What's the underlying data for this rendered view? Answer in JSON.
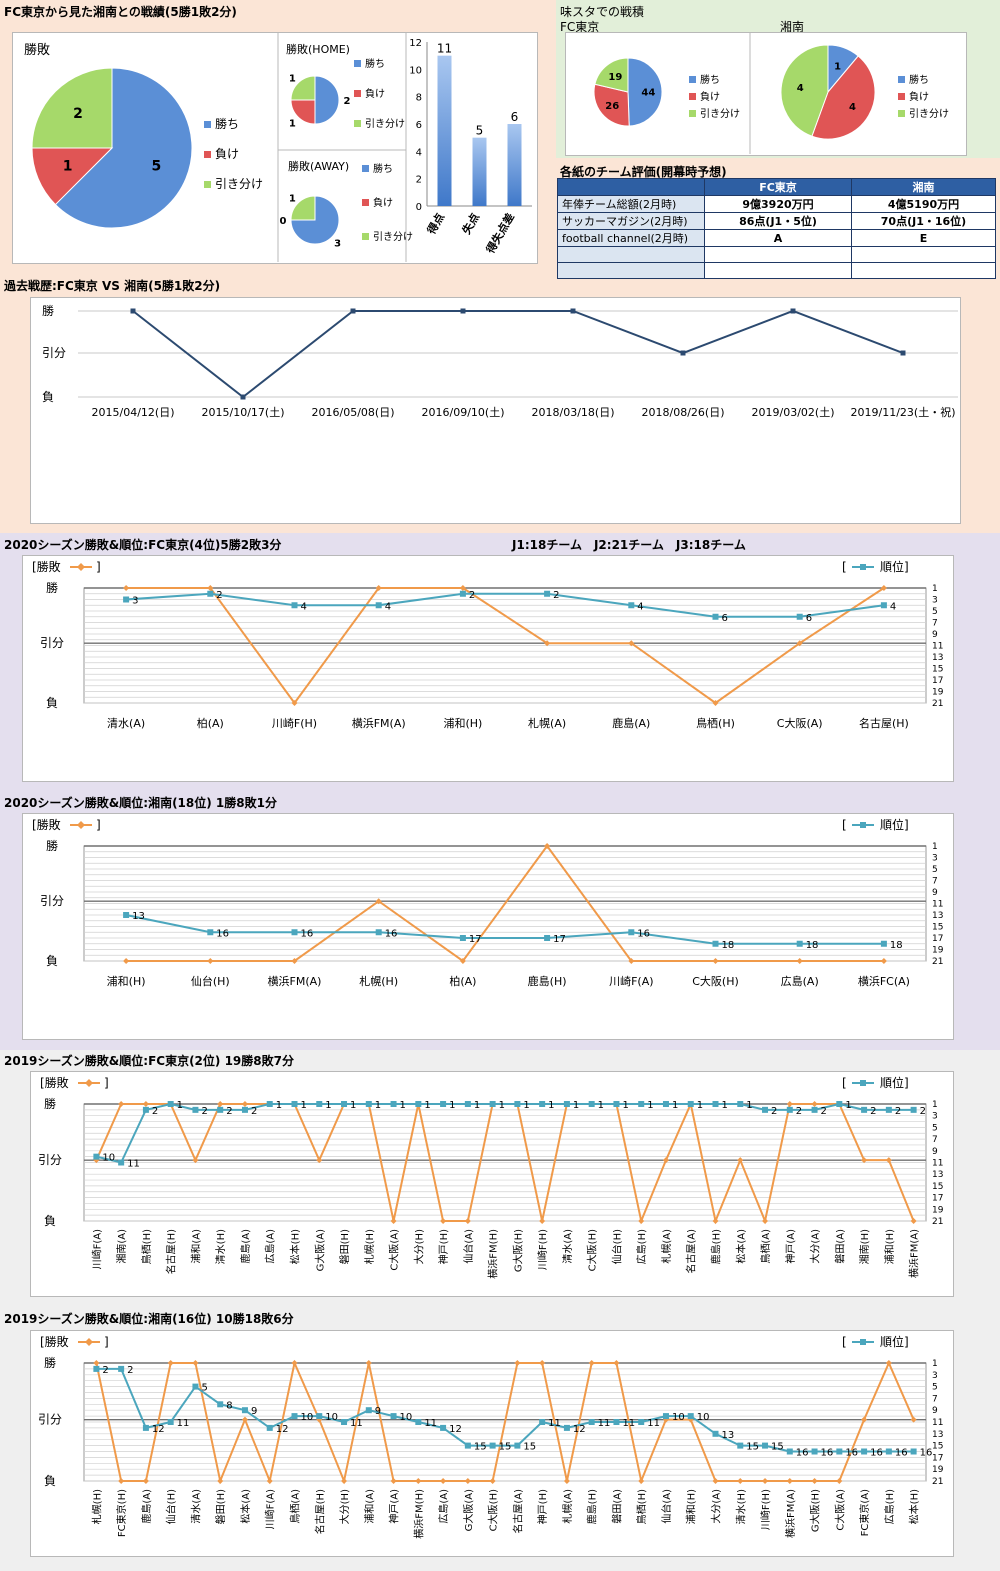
{
  "sec1": {
    "title": "FC東京から見た湘南との戦績(5勝1敗2分)",
    "pie_main": {
      "title": "勝敗",
      "values": [
        5,
        1,
        2
      ],
      "labels": [
        "勝ち",
        "負け",
        "引き分け"
      ]
    },
    "pie_home": {
      "title": "勝敗(HOME)",
      "values": [
        2,
        1,
        1
      ],
      "labels": [
        "勝ち",
        "負け",
        "引き分け"
      ]
    },
    "pie_away": {
      "title": "勝敗(AWAY)",
      "values": [
        3,
        0,
        1
      ],
      "labels": [
        "勝ち",
        "負け",
        "引き分け"
      ]
    },
    "bar": {
      "categories": [
        "得点",
        "失点",
        "得失点差"
      ],
      "values": [
        11,
        5,
        6
      ],
      "ticks": [
        "0",
        "2",
        "4",
        "6",
        "8",
        "10",
        "12"
      ]
    }
  },
  "ajista": {
    "title": "味スタでの戦積",
    "fc_label": "FC東京",
    "shonan_label": "湘南",
    "pie_fc": {
      "values": [
        44,
        26,
        19
      ],
      "labels": [
        "勝ち",
        "負け",
        "引き分け"
      ]
    },
    "pie_shonan": {
      "values": [
        1,
        4,
        4
      ],
      "labels": [
        "勝ち",
        "負け",
        "引き分け"
      ]
    }
  },
  "eval": {
    "title": "各紙のチーム評価(開幕時予想)",
    "headers": [
      "",
      "FC東京",
      "湘南"
    ],
    "rows": [
      [
        "年俸チーム総額(2月時)",
        "9億3920万円",
        "4億5190万円"
      ],
      [
        "サッカーマガジン(2月時)",
        "86点(J1・5位)",
        "70点(J1・16位)"
      ],
      [
        "football channel(2月時)",
        "A",
        "E"
      ],
      [
        "",
        "",
        ""
      ],
      [
        "",
        "",
        ""
      ]
    ]
  },
  "history": {
    "title": "過去戦歴:FC東京 VS 湘南(5勝1敗2分)",
    "ylabels": [
      "勝",
      "引分",
      "負"
    ],
    "dates": [
      "2015/04/12(日)",
      "2015/10/17(土)",
      "2016/05/08(日)",
      "2016/09/10(土)",
      "2018/03/18(日)",
      "2018/08/26(日)",
      "2019/03/02(土)",
      "2019/11/23(土・祝)"
    ],
    "results": [
      1,
      -1,
      1,
      1,
      1,
      0,
      1,
      0
    ]
  },
  "legend": {
    "result": "[勝敗",
    "rank": "順位]"
  },
  "common_ylabels": [
    "勝",
    "引分",
    "負"
  ],
  "rank_ticks": [
    "1",
    "3",
    "5",
    "7",
    "9",
    "11",
    "13",
    "15",
    "17",
    "19",
    "21"
  ],
  "league_info": "J1:18チーム　J2:21チーム　J3:18チーム",
  "s2020_fc": {
    "title": "2020シーズン勝敗&順位:FC東京(4位)5勝2敗3分",
    "opponents": [
      "清水(A)",
      "柏(A)",
      "川崎F(H)",
      "横浜FM(A)",
      "浦和(H)",
      "札幌(A)",
      "鹿島(A)",
      "鳥栖(H)",
      "C大阪(A)",
      "名古屋(H)"
    ],
    "results": [
      1,
      1,
      -1,
      1,
      1,
      0,
      0,
      -1,
      0,
      1
    ],
    "ranks": [
      3,
      2,
      4,
      4,
      2,
      2,
      4,
      6,
      6,
      4
    ]
  },
  "s2020_sh": {
    "title": "2020シーズン勝敗&順位:湘南(18位) 1勝8敗1分",
    "opponents": [
      "浦和(H)",
      "仙台(H)",
      "横浜FM(A)",
      "札幌(H)",
      "柏(A)",
      "鹿島(H)",
      "川崎F(A)",
      "C大阪(H)",
      "広島(A)",
      "横浜FC(A)"
    ],
    "results": [
      -1,
      -1,
      -1,
      0,
      -1,
      1,
      -1,
      -1,
      -1,
      -1
    ],
    "ranks": [
      13,
      16,
      16,
      16,
      17,
      17,
      16,
      18,
      18,
      18
    ]
  },
  "s2019_fc": {
    "title": "2019シーズン勝敗&順位:FC東京(2位) 19勝8敗7分",
    "opponents": [
      "川崎F(A)",
      "湘南(A)",
      "鳥栖(H)",
      "名古屋(H)",
      "浦和(A)",
      "清水(H)",
      "鹿島(A)",
      "広島(A)",
      "松本(H)",
      "G大阪(A)",
      "磐田(H)",
      "札幌(H)",
      "C大阪(A)",
      "大分(H)",
      "神戸(H)",
      "仙台(A)",
      "横浜FM(H)",
      "G大阪(H)",
      "川崎F(H)",
      "清水(A)",
      "C大阪(H)",
      "仙台(H)",
      "広島(H)",
      "札幌(A)",
      "名古屋(A)",
      "鹿島(H)",
      "松本(A)",
      "鳥栖(A)",
      "神戸(A)",
      "大分(A)",
      "磐田(A)",
      "湘南(H)",
      "浦和(H)",
      "横浜FM(A)"
    ],
    "results": [
      0,
      1,
      1,
      1,
      0,
      1,
      1,
      1,
      1,
      0,
      1,
      1,
      -1,
      1,
      -1,
      -1,
      1,
      1,
      -1,
      1,
      1,
      1,
      -1,
      0,
      1,
      -1,
      0,
      -1,
      1,
      1,
      1,
      0,
      0,
      -1
    ],
    "ranks": [
      10,
      11,
      2,
      1,
      2,
      2,
      2,
      1,
      1,
      1,
      1,
      1,
      1,
      1,
      1,
      1,
      1,
      1,
      1,
      1,
      1,
      1,
      1,
      1,
      1,
      1,
      1,
      2,
      2,
      2,
      1,
      2,
      2,
      2
    ]
  },
  "s2019_sh": {
    "title": "2019シーズン勝敗&順位:湘南(16位) 10勝18敗6分",
    "opponents": [
      "札幌(H)",
      "FC東京(H)",
      "鹿島(A)",
      "仙台(H)",
      "清水(A)",
      "磐田(H)",
      "松本(A)",
      "川崎F(A)",
      "鳥栖(A)",
      "名古屋(H)",
      "大分(H)",
      "浦和(A)",
      "神戸(A)",
      "横浜FM(H)",
      "広島(A)",
      "G大阪(A)",
      "C大阪(H)",
      "名古屋(A)",
      "神戸(H)",
      "札幌(A)",
      "鹿島(H)",
      "磐田(A)",
      "鳥栖(H)",
      "仙台(A)",
      "浦和(H)",
      "大分(A)",
      "清水(H)",
      "川崎F(H)",
      "横浜FM(A)",
      "G大阪(H)",
      "C大阪(A)",
      "FC東京(A)",
      "広島(H)",
      "松本(H)"
    ],
    "results": [
      1,
      -1,
      -1,
      1,
      1,
      -1,
      0,
      -1,
      1,
      0,
      -1,
      1,
      -1,
      -1,
      -1,
      -1,
      -1,
      1,
      1,
      -1,
      1,
      1,
      -1,
      0,
      0,
      -1,
      -1,
      -1,
      -1,
      -1,
      -1,
      0,
      1,
      0
    ],
    "ranks": [
      2,
      2,
      12,
      11,
      5,
      8,
      9,
      12,
      10,
      10,
      11,
      9,
      10,
      11,
      12,
      15,
      15,
      15,
      11,
      12,
      11,
      11,
      11,
      10,
      10,
      13,
      15,
      15,
      16,
      16,
      16,
      16,
      16,
      16
    ]
  },
  "chart_data": [
    {
      "type": "pie",
      "title": "勝敗",
      "labels": [
        "勝ち",
        "負け",
        "引き分け"
      ],
      "values": [
        5,
        1,
        2
      ]
    },
    {
      "type": "pie",
      "title": "勝敗(HOME)",
      "labels": [
        "勝ち",
        "負け",
        "引き分け"
      ],
      "values": [
        2,
        1,
        1
      ]
    },
    {
      "type": "pie",
      "title": "勝敗(AWAY)",
      "labels": [
        "勝ち",
        "負け",
        "引き分け"
      ],
      "values": [
        3,
        0,
        1
      ]
    },
    {
      "type": "bar",
      "categories": [
        "得点",
        "失点",
        "得失点差"
      ],
      "values": [
        11,
        5,
        6
      ],
      "ylim": [
        0,
        12
      ]
    },
    {
      "type": "pie",
      "title": "FC東京",
      "labels": [
        "勝ち",
        "負け",
        "引き分け"
      ],
      "values": [
        44,
        26,
        19
      ]
    },
    {
      "type": "pie",
      "title": "湘南",
      "labels": [
        "勝ち",
        "負け",
        "引き分け"
      ],
      "values": [
        1,
        4,
        4
      ]
    },
    {
      "type": "line",
      "title": "過去戦歴:FC東京 VS 湘南(5勝1敗2分)",
      "categories": [
        "2015/04/12(日)",
        "2015/10/17(土)",
        "2016/05/08(日)",
        "2016/09/10(土)",
        "2018/03/18(日)",
        "2018/08/26(日)",
        "2019/03/02(土)",
        "2019/11/23(土・祝)"
      ],
      "values": [
        1,
        -1,
        1,
        1,
        1,
        0,
        1,
        0
      ]
    },
    {
      "type": "line",
      "title": "2020シーズン勝敗&順位:FC東京(4位)5勝2敗3分",
      "series": [
        {
          "name": "勝敗",
          "values": [
            1,
            1,
            -1,
            1,
            1,
            0,
            0,
            -1,
            0,
            1
          ]
        },
        {
          "name": "順位",
          "values": [
            3,
            2,
            4,
            4,
            2,
            2,
            4,
            6,
            6,
            4
          ]
        }
      ]
    },
    {
      "type": "line",
      "title": "2020シーズン勝敗&順位:湘南(18位) 1勝8敗1分",
      "series": [
        {
          "name": "勝敗",
          "values": [
            -1,
            -1,
            -1,
            0,
            -1,
            1,
            -1,
            -1,
            -1,
            -1
          ]
        },
        {
          "name": "順位",
          "values": [
            13,
            16,
            16,
            16,
            17,
            17,
            16,
            18,
            18,
            18
          ]
        }
      ]
    },
    {
      "type": "line",
      "title": "2019シーズン勝敗&順位:FC東京(2位) 19勝8敗7分",
      "series": [
        {
          "name": "勝敗",
          "values": [
            0,
            1,
            1,
            1,
            0,
            1,
            1,
            1,
            1,
            0,
            1,
            1,
            -1,
            1,
            -1,
            -1,
            1,
            1,
            -1,
            1,
            1,
            1,
            -1,
            0,
            1,
            -1,
            0,
            -1,
            1,
            1,
            1,
            0,
            0,
            -1
          ]
        },
        {
          "name": "順位",
          "values": [
            10,
            11,
            2,
            1,
            2,
            2,
            2,
            1,
            1,
            1,
            1,
            1,
            1,
            1,
            1,
            1,
            1,
            1,
            1,
            1,
            1,
            1,
            1,
            1,
            1,
            1,
            1,
            2,
            2,
            2,
            1,
            2,
            2,
            2
          ]
        }
      ]
    },
    {
      "type": "line",
      "title": "2019シーズン勝敗&順位:湘南(16位) 10勝18敗6分",
      "series": [
        {
          "name": "勝敗",
          "values": [
            1,
            -1,
            -1,
            1,
            1,
            -1,
            0,
            -1,
            1,
            0,
            -1,
            1,
            -1,
            -1,
            -1,
            -1,
            -1,
            1,
            1,
            -1,
            1,
            1,
            -1,
            0,
            0,
            -1,
            -1,
            -1,
            -1,
            -1,
            -1,
            0,
            1,
            0
          ]
        },
        {
          "name": "順位",
          "values": [
            2,
            2,
            12,
            11,
            5,
            8,
            9,
            12,
            10,
            10,
            11,
            9,
            10,
            11,
            12,
            15,
            15,
            15,
            11,
            12,
            11,
            11,
            11,
            10,
            10,
            13,
            15,
            15,
            16,
            16,
            16,
            16,
            16,
            16
          ]
        }
      ]
    }
  ],
  "colors": {
    "win": "#5b8fd6",
    "lose": "#e05555",
    "draw": "#a6d96a",
    "result_line": "#f09a4a",
    "rank_line": "#4ba6bd",
    "history_line": "#2c4a70"
  }
}
